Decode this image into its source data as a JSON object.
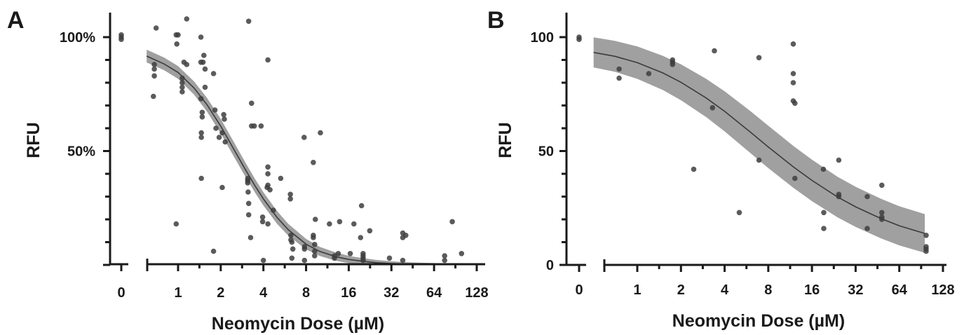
{
  "chart_data": [
    {
      "type": "scatter",
      "panel": "A",
      "xlabel": "Neomycin Dose (µM)",
      "ylabel": "RFU",
      "x_scale": "log2",
      "x_ticks": [
        1,
        2,
        4,
        8,
        16,
        32,
        64,
        128
      ],
      "x_tick_labels": [
        "1",
        "2",
        "4",
        "8",
        "16",
        "32",
        "64",
        "128"
      ],
      "x_zero_label": "0",
      "y_ticks": [
        0,
        10,
        20,
        30,
        40,
        50,
        60,
        70,
        80,
        90,
        100
      ],
      "y_tick_labels": [
        "",
        "",
        "",
        "",
        "",
        "50%",
        "",
        "",
        "",
        "",
        "100%"
      ],
      "ylim": [
        0,
        110
      ],
      "xlim": [
        0.58,
        128
      ],
      "fit": {
        "x": [
          0.6,
          0.8,
          1.0,
          1.3,
          1.6,
          2.0,
          2.5,
          3.0,
          3.5,
          4.0,
          5.0,
          6.0,
          8.0,
          10,
          13,
          16,
          20,
          25,
          32,
          40,
          50,
          64,
          80,
          96
        ],
        "y": [
          91.7,
          88.2,
          84.5,
          77.6,
          70.3,
          60.9,
          50.3,
          41.6,
          34.6,
          29.0,
          20.8,
          15.4,
          9.1,
          5.9,
          3.6,
          2.4,
          1.6,
          1.0,
          0.6,
          0.4,
          0.3,
          0.2,
          0.1,
          0.1
        ],
        "ci_half_width": [
          2.8,
          2.8,
          2.8,
          2.9,
          3.0,
          3.2,
          3.2,
          3.1,
          3.0,
          2.9,
          2.8,
          2.6,
          2.3,
          2.0,
          1.8,
          1.6,
          1.4,
          1.2,
          1.0,
          0.8,
          0.7,
          0.6,
          0.5,
          0.5
        ]
      },
      "zero_dose_points": [
        101,
        100,
        99
      ],
      "points": [
        {
          "x": 0.7,
          "y": 104
        },
        {
          "x": 0.68,
          "y": 88
        },
        {
          "x": 0.68,
          "y": 86
        },
        {
          "x": 0.68,
          "y": 83
        },
        {
          "x": 0.67,
          "y": 74
        },
        {
          "x": 0.97,
          "y": 101
        },
        {
          "x": 1.0,
          "y": 101
        },
        {
          "x": 0.98,
          "y": 97
        },
        {
          "x": 0.97,
          "y": 18
        },
        {
          "x": 1.15,
          "y": 108
        },
        {
          "x": 1.1,
          "y": 89
        },
        {
          "x": 1.15,
          "y": 88
        },
        {
          "x": 1.07,
          "y": 82
        },
        {
          "x": 1.07,
          "y": 80
        },
        {
          "x": 1.07,
          "y": 78
        },
        {
          "x": 1.07,
          "y": 76
        },
        {
          "x": 1.45,
          "y": 100
        },
        {
          "x": 1.52,
          "y": 92
        },
        {
          "x": 1.5,
          "y": 89
        },
        {
          "x": 1.45,
          "y": 89
        },
        {
          "x": 1.55,
          "y": 86
        },
        {
          "x": 1.55,
          "y": 78
        },
        {
          "x": 1.45,
          "y": 73
        },
        {
          "x": 1.48,
          "y": 67
        },
        {
          "x": 1.48,
          "y": 65
        },
        {
          "x": 1.46,
          "y": 58
        },
        {
          "x": 1.46,
          "y": 56
        },
        {
          "x": 1.46,
          "y": 38
        },
        {
          "x": 1.78,
          "y": 84
        },
        {
          "x": 1.82,
          "y": 68
        },
        {
          "x": 1.85,
          "y": 60
        },
        {
          "x": 1.95,
          "y": 56
        },
        {
          "x": 1.78,
          "y": 6
        },
        {
          "x": 2.1,
          "y": 66
        },
        {
          "x": 2.12,
          "y": 64
        },
        {
          "x": 2.05,
          "y": 58
        },
        {
          "x": 2.15,
          "y": 54
        },
        {
          "x": 2.05,
          "y": 34
        },
        {
          "x": 3.15,
          "y": 107
        },
        {
          "x": 3.3,
          "y": 71
        },
        {
          "x": 3.3,
          "y": 61
        },
        {
          "x": 3.45,
          "y": 61
        },
        {
          "x": 3.1,
          "y": 38
        },
        {
          "x": 3.1,
          "y": 37
        },
        {
          "x": 3.1,
          "y": 36
        },
        {
          "x": 3.12,
          "y": 32
        },
        {
          "x": 3.15,
          "y": 27
        },
        {
          "x": 3.15,
          "y": 22
        },
        {
          "x": 3.25,
          "y": 12
        },
        {
          "x": 4.3,
          "y": 90
        },
        {
          "x": 3.85,
          "y": 61
        },
        {
          "x": 4.3,
          "y": 43
        },
        {
          "x": 4.3,
          "y": 40
        },
        {
          "x": 4.3,
          "y": 35
        },
        {
          "x": 3.95,
          "y": 21
        },
        {
          "x": 3.95,
          "y": 19
        },
        {
          "x": 4.3,
          "y": 18
        },
        {
          "x": 4.25,
          "y": 34
        },
        {
          "x": 4.45,
          "y": 33
        },
        {
          "x": 4.7,
          "y": 24
        },
        {
          "x": 5.3,
          "y": 38
        },
        {
          "x": 4.0,
          "y": 2
        },
        {
          "x": 6.2,
          "y": 31
        },
        {
          "x": 6.2,
          "y": 29
        },
        {
          "x": 6.25,
          "y": 13
        },
        {
          "x": 6.25,
          "y": 11
        },
        {
          "x": 6.35,
          "y": 10
        },
        {
          "x": 6.45,
          "y": 7
        },
        {
          "x": 6.35,
          "y": 3
        },
        {
          "x": 7.75,
          "y": 56
        },
        {
          "x": 7.8,
          "y": 8
        },
        {
          "x": 7.8,
          "y": 7
        },
        {
          "x": 7.8,
          "y": 2
        },
        {
          "x": 9.0,
          "y": 45
        },
        {
          "x": 9.0,
          "y": 13
        },
        {
          "x": 9.0,
          "y": 12
        },
        {
          "x": 9.2,
          "y": 9
        },
        {
          "x": 9.2,
          "y": 6
        },
        {
          "x": 9.2,
          "y": 4
        },
        {
          "x": 9.3,
          "y": 20
        },
        {
          "x": 10.1,
          "y": 58
        },
        {
          "x": 11.7,
          "y": 18
        },
        {
          "x": 12.7,
          "y": 4
        },
        {
          "x": 12.7,
          "y": 3
        },
        {
          "x": 13.5,
          "y": 5
        },
        {
          "x": 13.8,
          "y": 19
        },
        {
          "x": 16.4,
          "y": 5
        },
        {
          "x": 17.4,
          "y": 18
        },
        {
          "x": 19.7,
          "y": 26
        },
        {
          "x": 19.4,
          "y": 12
        },
        {
          "x": 20.2,
          "y": 5
        },
        {
          "x": 20.2,
          "y": 4
        },
        {
          "x": 20.2,
          "y": 3
        },
        {
          "x": 20.2,
          "y": 2
        },
        {
          "x": 22.5,
          "y": 15
        },
        {
          "x": 31,
          "y": 3
        },
        {
          "x": 38.5,
          "y": 14
        },
        {
          "x": 38.5,
          "y": 12
        },
        {
          "x": 38.5,
          "y": 2
        },
        {
          "x": 40.4,
          "y": 13
        },
        {
          "x": 76,
          "y": 4
        },
        {
          "x": 76,
          "y": 2
        },
        {
          "x": 86,
          "y": 19
        },
        {
          "x": 100,
          "y": 5
        }
      ]
    },
    {
      "type": "scatter",
      "panel": "B",
      "xlabel": "Neomycin Dose (µM)",
      "ylabel": "RFU",
      "x_scale": "log2",
      "x_ticks": [
        1,
        2,
        4,
        8,
        16,
        32,
        64,
        128
      ],
      "x_tick_labels": [
        "1",
        "2",
        "4",
        "8",
        "16",
        "32",
        "64",
        "128"
      ],
      "x_zero_label": "0",
      "y_ticks": [
        0,
        10,
        20,
        30,
        40,
        50,
        60,
        70,
        80,
        90,
        100
      ],
      "y_tick_labels": [
        "0",
        "",
        "",
        "",
        "",
        "50",
        "",
        "",
        "",
        "",
        "100"
      ],
      "ylim": [
        0,
        110
      ],
      "xlim": [
        0.5,
        112
      ],
      "fit": {
        "x": [
          0.5,
          0.7,
          1.0,
          1.5,
          2.0,
          3.0,
          4.0,
          6.0,
          8.0,
          12,
          16,
          24,
          32,
          48,
          64,
          96
        ],
        "y": [
          93.3,
          91.6,
          88.8,
          84.3,
          80.2,
          73.2,
          67.4,
          58.4,
          51.8,
          42.9,
          37.1,
          29.8,
          25.5,
          20.3,
          17.2,
          13.8
        ],
        "ci_half_width": [
          6.6,
          6.8,
          7.1,
          7.5,
          7.9,
          8.4,
          8.8,
          9.2,
          9.3,
          9.2,
          9.1,
          8.9,
          8.8,
          8.7,
          8.6,
          8.5
        ]
      },
      "zero_dose_points": [
        100,
        99
      ],
      "points": [
        {
          "x": 0.75,
          "y": 86
        },
        {
          "x": 0.75,
          "y": 82
        },
        {
          "x": 1.2,
          "y": 84
        },
        {
          "x": 1.75,
          "y": 90
        },
        {
          "x": 1.75,
          "y": 89
        },
        {
          "x": 1.75,
          "y": 88
        },
        {
          "x": 2.45,
          "y": 42
        },
        {
          "x": 3.4,
          "y": 94
        },
        {
          "x": 3.3,
          "y": 69
        },
        {
          "x": 5.05,
          "y": 23
        },
        {
          "x": 6.9,
          "y": 91
        },
        {
          "x": 6.9,
          "y": 46
        },
        {
          "x": 11.9,
          "y": 97
        },
        {
          "x": 11.9,
          "y": 84
        },
        {
          "x": 11.9,
          "y": 80
        },
        {
          "x": 11.9,
          "y": 72
        },
        {
          "x": 12.2,
          "y": 71
        },
        {
          "x": 12.2,
          "y": 38
        },
        {
          "x": 19.2,
          "y": 42
        },
        {
          "x": 19.3,
          "y": 23
        },
        {
          "x": 19.3,
          "y": 16
        },
        {
          "x": 24.5,
          "y": 46
        },
        {
          "x": 24.5,
          "y": 31
        },
        {
          "x": 24.5,
          "y": 30
        },
        {
          "x": 38.5,
          "y": 30
        },
        {
          "x": 38.5,
          "y": 16
        },
        {
          "x": 48.5,
          "y": 35
        },
        {
          "x": 48.5,
          "y": 23
        },
        {
          "x": 48.5,
          "y": 21
        },
        {
          "x": 48.5,
          "y": 20
        },
        {
          "x": 98,
          "y": 13
        },
        {
          "x": 98,
          "y": 8
        },
        {
          "x": 98,
          "y": 7
        },
        {
          "x": 98,
          "y": 6
        }
      ]
    }
  ]
}
